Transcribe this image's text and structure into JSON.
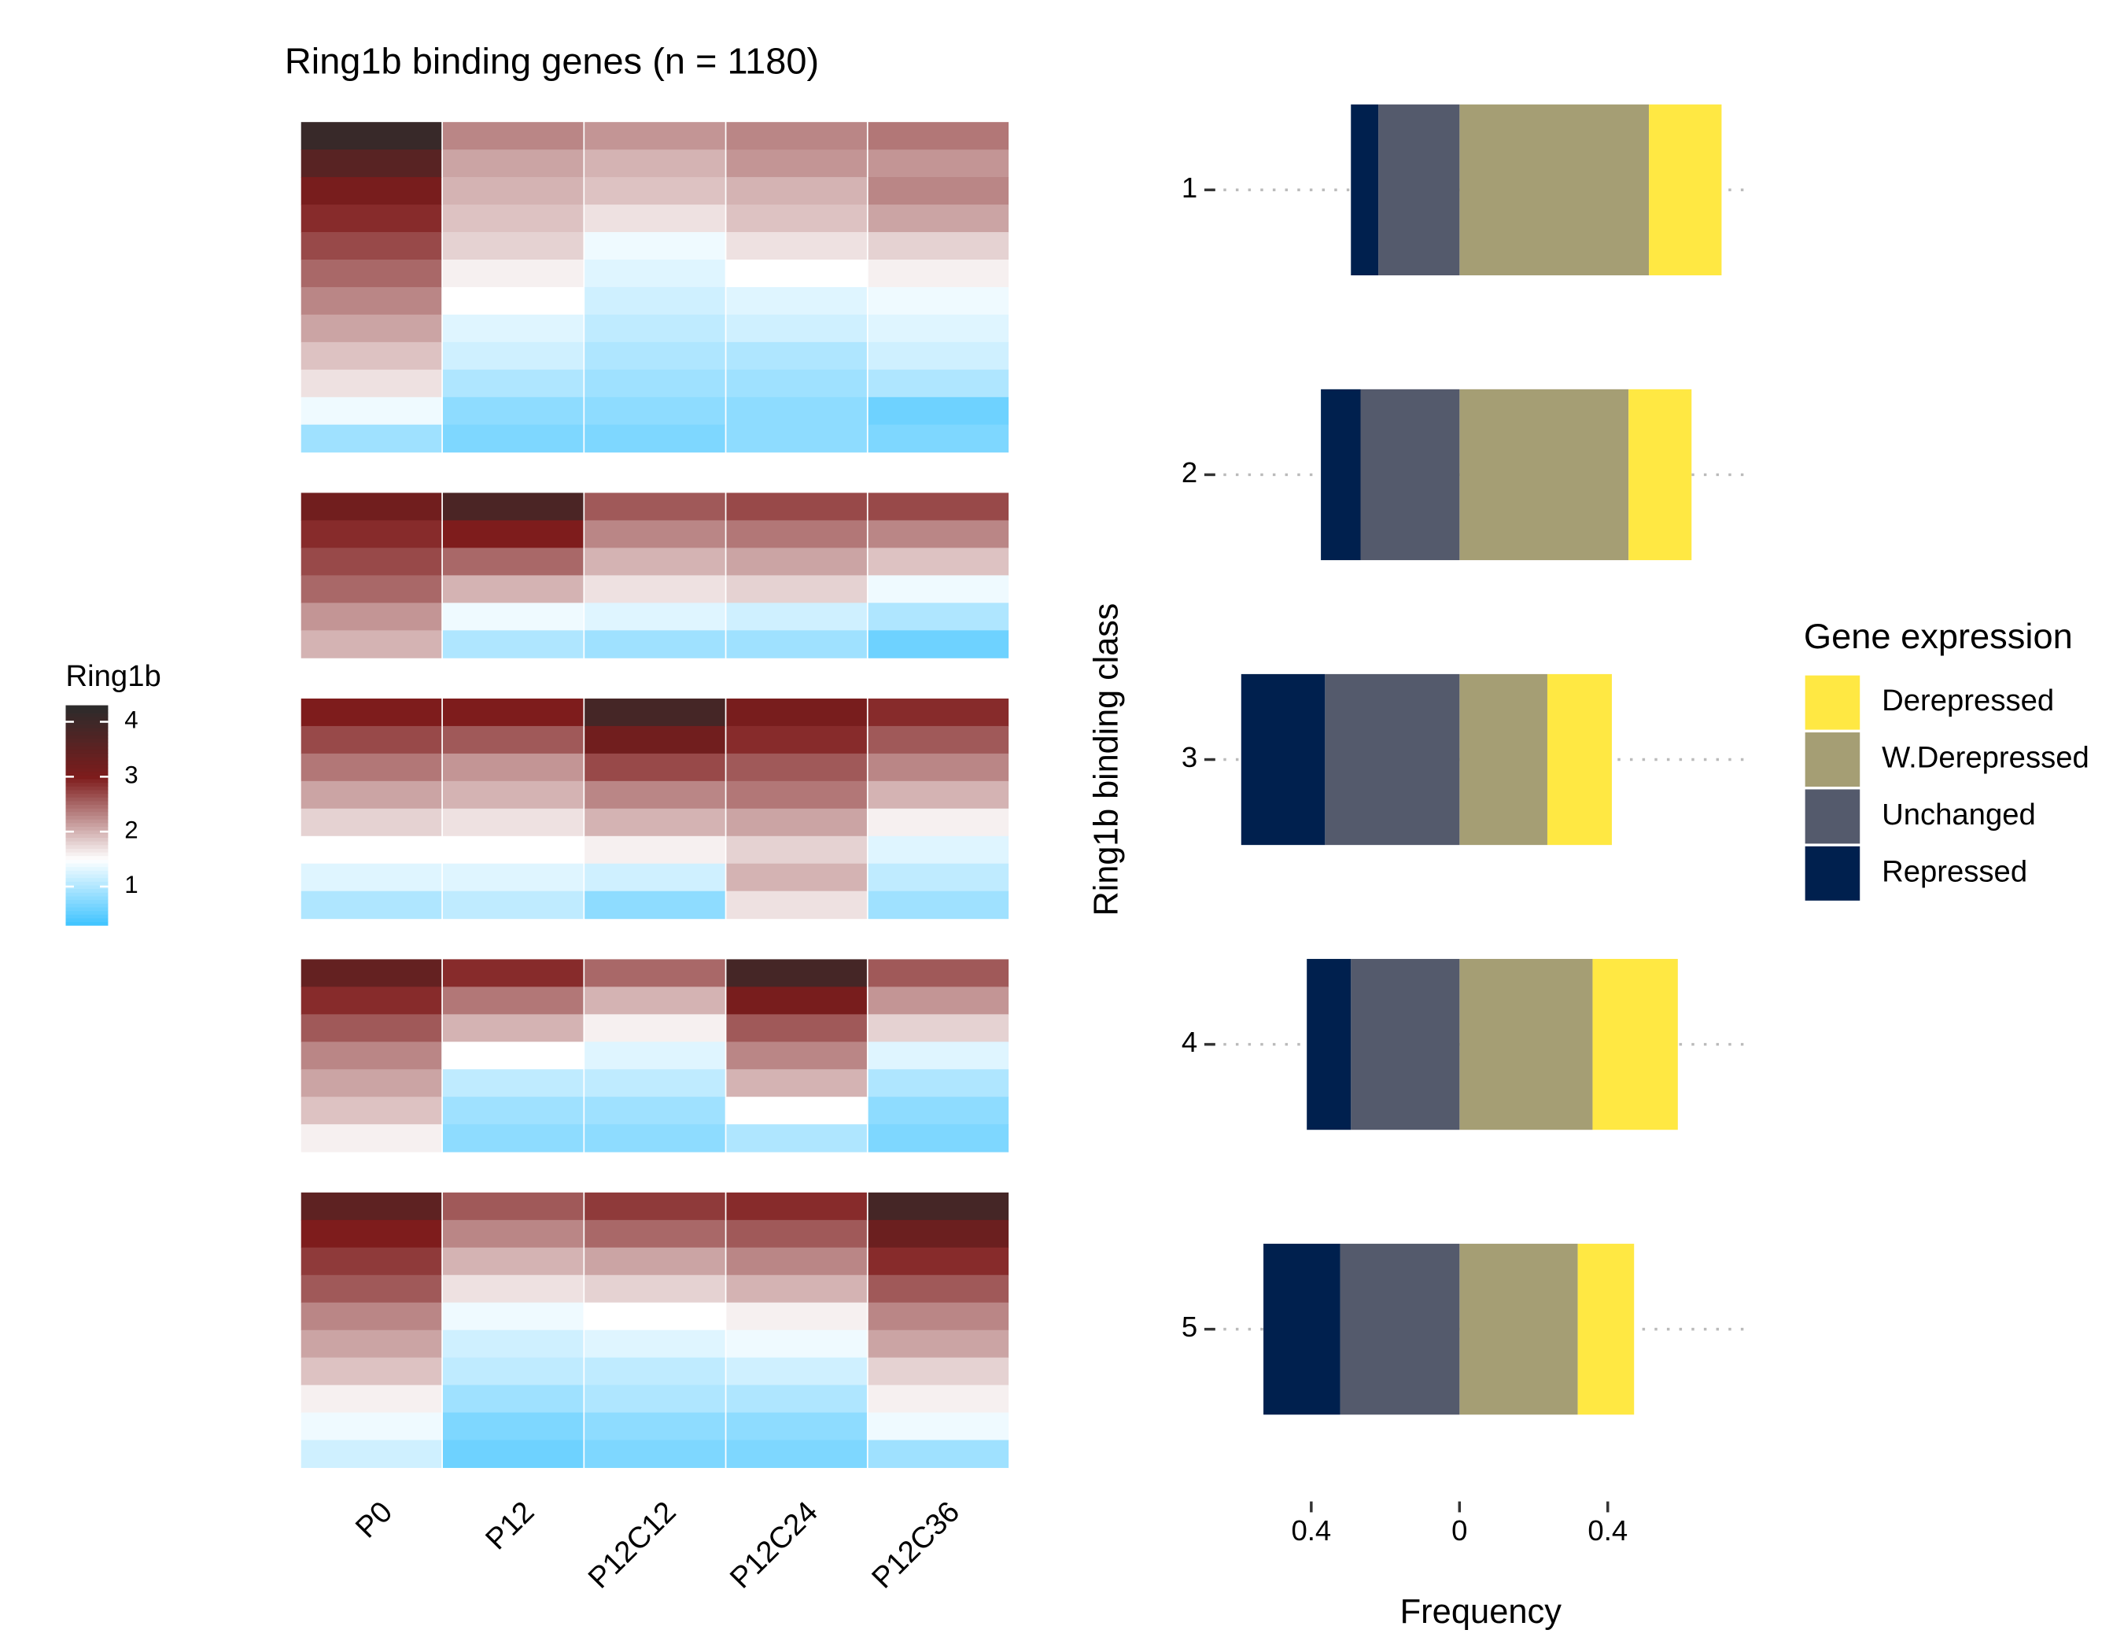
{
  "chart_data": [
    {
      "type": "heatmap",
      "title": "Ring1b binding genes (n = 1180)",
      "columns": [
        "P0",
        "P12",
        "P12C12",
        "P12C24",
        "P12C36"
      ],
      "blocks": [
        [
          [
            4.1,
            3.6,
            3.1,
            2.9,
            2.7,
            2.5,
            2.3,
            2.1,
            1.9,
            1.7,
            1.4,
            0.9
          ],
          [
            2.3,
            2.1,
            2.0,
            1.9,
            1.8,
            1.6,
            1.5,
            1.3,
            1.2,
            1.0,
            0.8,
            0.7
          ],
          [
            2.2,
            2.0,
            1.9,
            1.7,
            1.4,
            1.3,
            1.2,
            1.1,
            1.0,
            0.9,
            0.8,
            0.7
          ],
          [
            2.3,
            2.2,
            2.0,
            1.9,
            1.7,
            1.5,
            1.3,
            1.2,
            1.0,
            0.9,
            0.8,
            0.8
          ],
          [
            2.4,
            2.2,
            2.3,
            2.1,
            1.8,
            1.6,
            1.4,
            1.3,
            1.2,
            1.0,
            0.6,
            0.7
          ]
        ],
        [
          [
            3.2,
            2.9,
            2.7,
            2.5,
            2.2,
            2.0
          ],
          [
            3.8,
            3.0,
            2.5,
            2.0,
            1.4,
            1.0
          ],
          [
            2.6,
            2.3,
            2.0,
            1.7,
            1.3,
            0.9
          ],
          [
            2.7,
            2.4,
            2.1,
            1.8,
            1.2,
            0.9
          ],
          [
            2.7,
            2.3,
            1.9,
            1.4,
            1.0,
            0.6
          ]
        ],
        [
          [
            3.0,
            2.7,
            2.4,
            2.1,
            1.8,
            1.5,
            1.3,
            1.0
          ],
          [
            3.0,
            2.6,
            2.2,
            2.0,
            1.7,
            1.5,
            1.3,
            1.1
          ],
          [
            3.9,
            3.2,
            2.7,
            2.3,
            2.0,
            1.6,
            1.2,
            0.8
          ],
          [
            3.1,
            2.9,
            2.6,
            2.4,
            2.1,
            1.8,
            2.0,
            1.7
          ],
          [
            2.9,
            2.6,
            2.3,
            2.0,
            1.6,
            1.3,
            1.1,
            0.9
          ]
        ],
        [
          [
            3.4,
            2.9,
            2.6,
            2.3,
            2.1,
            1.9,
            1.6
          ],
          [
            2.9,
            2.4,
            2.0,
            1.5,
            1.1,
            0.9,
            0.8
          ],
          [
            2.5,
            2.0,
            1.6,
            1.3,
            1.1,
            0.9,
            0.8
          ],
          [
            3.9,
            3.1,
            2.6,
            2.3,
            2.0,
            1.5,
            1.0
          ],
          [
            2.6,
            2.2,
            1.8,
            1.3,
            1.0,
            0.8,
            0.7
          ]
        ],
        [
          [
            3.5,
            3.0,
            2.8,
            2.6,
            2.3,
            2.1,
            1.9,
            1.6,
            1.4,
            1.2
          ],
          [
            2.6,
            2.3,
            2.0,
            1.7,
            1.4,
            1.2,
            1.1,
            0.9,
            0.7,
            0.6
          ],
          [
            2.8,
            2.5,
            2.1,
            1.8,
            1.5,
            1.3,
            1.1,
            1.0,
            0.8,
            0.7
          ],
          [
            2.9,
            2.6,
            2.3,
            2.0,
            1.6,
            1.4,
            1.2,
            1.0,
            0.8,
            0.7
          ],
          [
            3.9,
            3.3,
            2.9,
            2.6,
            2.3,
            2.1,
            1.8,
            1.6,
            1.4,
            0.9
          ]
        ]
      ],
      "colorbar": {
        "title": "Ring1b",
        "lim": [
          0.3,
          4.3
        ],
        "ticks": [
          1,
          2,
          3,
          4
        ],
        "stops": [
          0.3,
          1.5,
          3,
          4.3
        ],
        "colors": [
          "#3ec3ff",
          "#ffffff",
          "#7e1c1c",
          "#2b2b2b"
        ]
      }
    },
    {
      "type": "diverging_bar",
      "xlabel": "Frequency",
      "ylabel": "Ring1b binding class",
      "legend_title": "Gene expression",
      "legend": "right",
      "categories": [
        "1",
        "2",
        "3",
        "4",
        "5"
      ],
      "series": [
        {
          "name": "Derepressed",
          "color": "#ffe843",
          "values": [
            0.196,
            0.17,
            0.174,
            0.23,
            0.152
          ]
        },
        {
          "name": "W.Derepressed",
          "color": "#a59e74",
          "values": [
            0.511,
            0.456,
            0.237,
            0.359,
            0.319
          ]
        },
        {
          "name": "Unchanged",
          "color": "#545a6c",
          "values": [
            -0.219,
            -0.267,
            -0.363,
            -0.293,
            -0.322
          ]
        },
        {
          "name": "Repressed",
          "color": "#00204e",
          "values": [
            -0.074,
            -0.107,
            -0.226,
            -0.119,
            -0.207
          ]
        }
      ],
      "xlim": [
        -0.67,
        0.77
      ],
      "xticks": [
        {
          "value": -0.4,
          "label": "0.4"
        },
        0,
        {
          "value": 0.4,
          "label": "0.4"
        }
      ],
      "grid": true
    }
  ]
}
